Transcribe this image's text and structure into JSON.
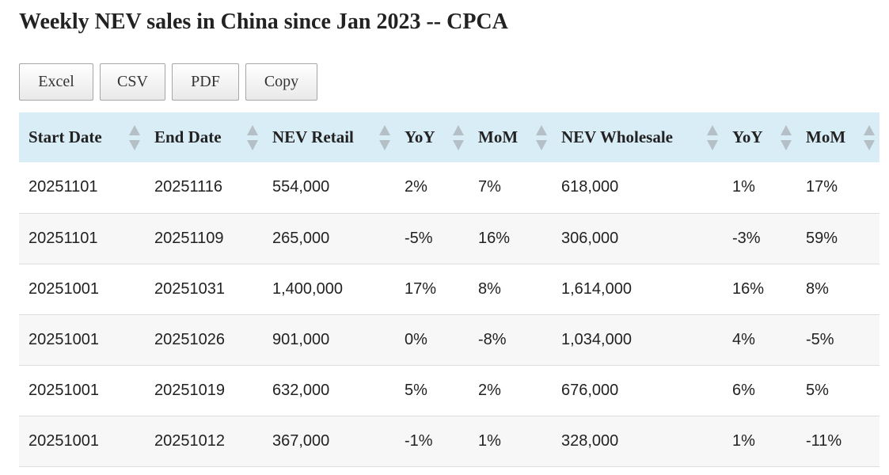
{
  "page": {
    "title": "Weekly NEV sales in China since Jan 2023 -- CPCA"
  },
  "toolbar": {
    "excel_label": "Excel",
    "csv_label": "CSV",
    "pdf_label": "PDF",
    "copy_label": "Copy"
  },
  "table": {
    "columns": [
      "Start Date",
      "End Date",
      "NEV Retail",
      "YoY",
      "MoM",
      "NEV Wholesale",
      "YoY",
      "MoM"
    ],
    "rows": [
      [
        "20251101",
        "20251116",
        "554,000",
        "2%",
        "7%",
        "618,000",
        "1%",
        "17%"
      ],
      [
        "20251101",
        "20251109",
        "265,000",
        "-5%",
        "16%",
        "306,000",
        "-3%",
        "59%"
      ],
      [
        "20251001",
        "20251031",
        "1,400,000",
        "17%",
        "8%",
        "1,614,000",
        "16%",
        "8%"
      ],
      [
        "20251001",
        "20251026",
        "901,000",
        "0%",
        "-8%",
        "1,034,000",
        "4%",
        "-5%"
      ],
      [
        "20251001",
        "20251019",
        "632,000",
        "5%",
        "2%",
        "676,000",
        "6%",
        "5%"
      ],
      [
        "20251001",
        "20251012",
        "367,000",
        "-1%",
        "1%",
        "328,000",
        "1%",
        "-11%"
      ]
    ]
  },
  "icons": {
    "sort": "sort-both-icon"
  },
  "colors": {
    "header_background": "#d9edf7",
    "row_stripe": "#f7f7f7",
    "sort_arrow": "#b5bfc6"
  }
}
